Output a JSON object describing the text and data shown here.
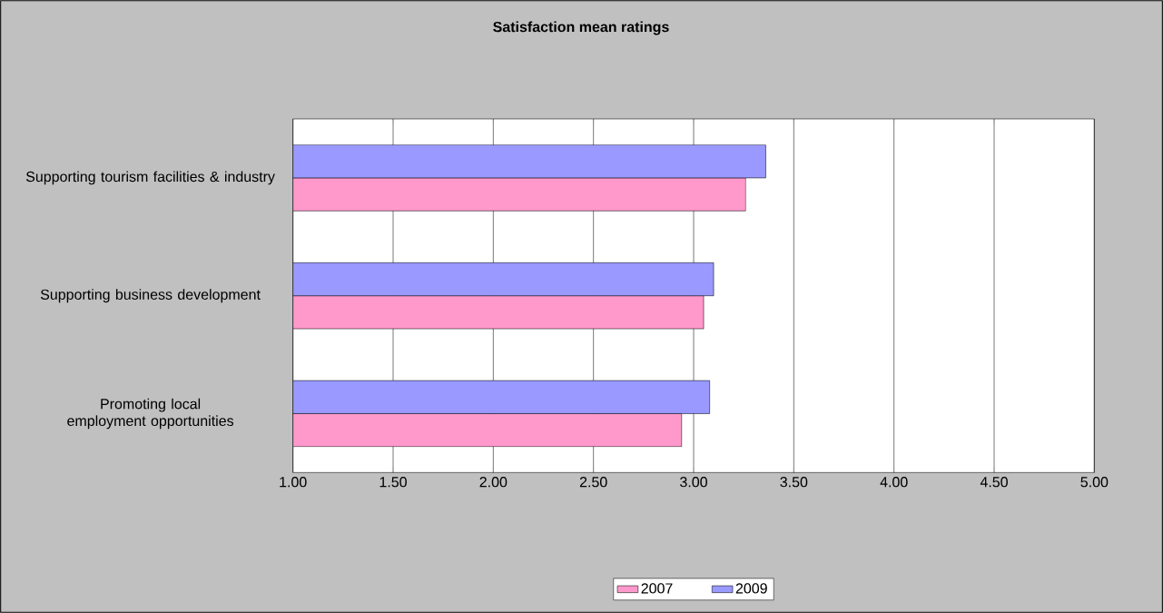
{
  "chart_data": {
    "type": "bar",
    "orientation": "horizontal",
    "title": "Satisfaction mean ratings",
    "categories": [
      "Supporting tourism facilities & industry",
      "Supporting business development",
      "Promoting local employment opportunities"
    ],
    "series": [
      {
        "name": "2007",
        "color": "#ff99cc",
        "values": [
          3.26,
          3.05,
          2.94
        ]
      },
      {
        "name": "2009",
        "color": "#9999ff",
        "values": [
          3.36,
          3.1,
          3.08
        ]
      }
    ],
    "xlim": [
      1,
      5
    ],
    "xticks": [
      {
        "value": 1,
        "label": "1.00"
      },
      {
        "value": 1.5,
        "label": "1.50"
      },
      {
        "value": 2,
        "label": "2.00"
      },
      {
        "value": 2.5,
        "label": "2.50"
      },
      {
        "value": 3,
        "label": "3.00"
      },
      {
        "value": 3.5,
        "label": "3.50"
      },
      {
        "value": 4,
        "label": "4.00"
      },
      {
        "value": 4.5,
        "label": "4.50"
      },
      {
        "value": 5,
        "label": "5.00"
      }
    ],
    "grid": "x",
    "legend": "bottom"
  }
}
